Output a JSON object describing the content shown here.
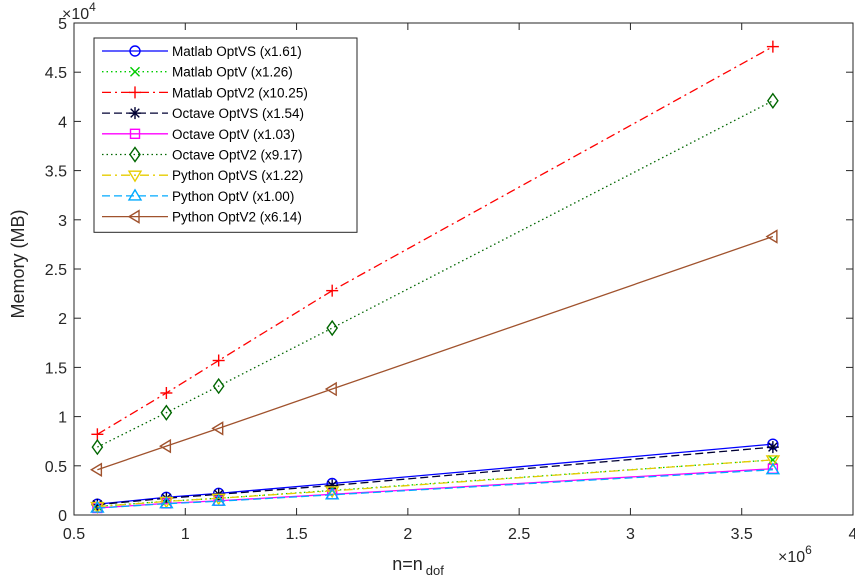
{
  "chart_data": {
    "type": "line",
    "xlabel_main": "n=n",
    "xlabel_sub": "dof",
    "ylabel": "Memory (MB)",
    "x_exponent_base": "×10",
    "x_exponent_power": "6",
    "y_exponent_base": "×10",
    "y_exponent_power": "4",
    "xlim": [
      0.5,
      4
    ],
    "ylim": [
      0,
      5
    ],
    "x_ticks": [
      0.5,
      1,
      1.5,
      2,
      2.5,
      3,
      3.5,
      4
    ],
    "x_tick_labels": [
      "0.5",
      "1",
      "1.5",
      "2",
      "2.5",
      "3",
      "3.5",
      "4"
    ],
    "y_ticks": [
      0,
      0.5,
      1,
      1.5,
      2,
      2.5,
      3,
      3.5,
      4,
      4.5,
      5
    ],
    "y_tick_labels": [
      "0",
      "0.5",
      "1",
      "1.5",
      "2",
      "2.5",
      "3",
      "3.5",
      "4",
      "4.5",
      "5"
    ],
    "grid": false,
    "legend_position": "top-left",
    "x": [
      0.605,
      0.915,
      1.15,
      1.66,
      3.64
    ],
    "series": [
      {
        "name": "Matlab  OptVS (x1.61)",
        "color": "#0000ff",
        "dash": "solid",
        "marker": "circle",
        "values": [
          0.11,
          0.18,
          0.22,
          0.32,
          0.72
        ]
      },
      {
        "name": "Matlab  OptV (x1.26)",
        "color": "#00cc00",
        "dash": "dotted",
        "marker": "x",
        "values": [
          0.087,
          0.14,
          0.17,
          0.25,
          0.56
        ]
      },
      {
        "name": "Matlab  OptV2 (x10.25)",
        "color": "#ff0000",
        "dash": "dashdot",
        "marker": "plus",
        "values": [
          0.82,
          1.24,
          1.57,
          2.28,
          4.76
        ]
      },
      {
        "name": "Octave  OptVS (x1.54)",
        "color": "#000033",
        "dash": "dashed",
        "marker": "asterisk",
        "values": [
          0.105,
          0.17,
          0.21,
          0.3,
          0.69
        ]
      },
      {
        "name": "Octave  OptV (x1.03)",
        "color": "#ff00ff",
        "dash": "solid",
        "marker": "square",
        "values": [
          0.071,
          0.118,
          0.145,
          0.21,
          0.47
        ]
      },
      {
        "name": "Octave  OptV2 (x9.17)",
        "color": "#006600",
        "dash": "dotted",
        "marker": "diamond",
        "values": [
          0.69,
          1.04,
          1.31,
          1.9,
          4.21
        ]
      },
      {
        "name": "Python  OptVS (x1.22)",
        "color": "#e6cc00",
        "dash": "dashdot",
        "marker": "triangle-down",
        "values": [
          0.085,
          0.138,
          0.17,
          0.245,
          0.56
        ]
      },
      {
        "name": "Python  OptV (x1.00)",
        "color": "#00aaff",
        "dash": "dashed",
        "marker": "triangle-up",
        "values": [
          0.07,
          0.115,
          0.14,
          0.205,
          0.46
        ]
      },
      {
        "name": "Python  OptV2 (x6.14)",
        "color": "#a0522d",
        "dash": "solid",
        "marker": "triangle-left",
        "values": [
          0.46,
          0.7,
          0.88,
          1.28,
          2.83
        ]
      }
    ]
  }
}
